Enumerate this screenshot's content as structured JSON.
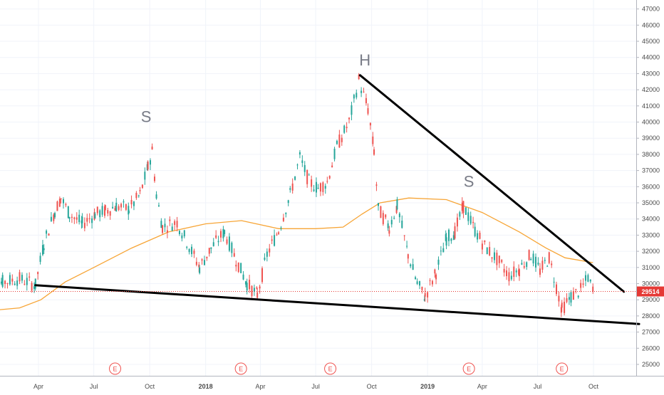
{
  "chart_data": {
    "type": "candlestick",
    "y_axis": {
      "ylim": [
        24300,
        47700
      ],
      "ticks": [
        25000,
        26000,
        27000,
        28000,
        29000,
        30000,
        31000,
        32000,
        33000,
        34000,
        35000,
        36000,
        37000,
        38000,
        39000,
        40000,
        41000,
        42000,
        43000,
        44000,
        45000,
        46000,
        47000
      ],
      "tick_labels": [
        "25000",
        "26000",
        "27000",
        "28000",
        "29000",
        "30000",
        "31000",
        "32000",
        "33000",
        "34000",
        "35000",
        "36000",
        "37000",
        "38000",
        "39000",
        "40000",
        "41000",
        "42000",
        "43000",
        "44000",
        "45000",
        "46000",
        "47000"
      ]
    },
    "x_axis": {
      "ticks": [
        "2017-04",
        "2017-07",
        "2017-10",
        "2018-01",
        "2018-04",
        "2018-07",
        "2018-10",
        "2019-01",
        "2019-04",
        "2019-07",
        "2019-10"
      ],
      "tick_labels": [
        "Apr",
        "Jul",
        "Oct",
        "2018",
        "Apr",
        "Jul",
        "Oct",
        "2019",
        "Apr",
        "Jul",
        "Oct"
      ]
    },
    "price_path": [
      [
        "2017-01-02",
        29800
      ],
      [
        "2017-02-01",
        30100
      ],
      [
        "2017-03-01",
        30300
      ],
      [
        "2017-03-27",
        29900
      ],
      [
        "2017-04-10",
        32500
      ],
      [
        "2017-04-28",
        34500
      ],
      [
        "2017-05-08",
        35300
      ],
      [
        "2017-05-22",
        34300
      ],
      [
        "2017-06-12",
        33700
      ],
      [
        "2017-07-03",
        34300
      ],
      [
        "2017-07-20",
        34500
      ],
      [
        "2017-08-07",
        34800
      ],
      [
        "2017-08-28",
        34600
      ],
      [
        "2017-09-15",
        35500
      ],
      [
        "2017-09-28",
        37200
      ],
      [
        "2017-10-05",
        38200
      ],
      [
        "2017-10-12",
        35500
      ],
      [
        "2017-10-22",
        33500
      ],
      [
        "2017-11-15",
        33800
      ],
      [
        "2017-12-05",
        32300
      ],
      [
        "2017-12-22",
        31000
      ],
      [
        "2018-01-10",
        32200
      ],
      [
        "2018-02-01",
        33200
      ],
      [
        "2018-02-20",
        31500
      ],
      [
        "2018-03-10",
        30000
      ],
      [
        "2018-03-27",
        29300
      ],
      [
        "2018-04-12",
        31800
      ],
      [
        "2018-05-01",
        33300
      ],
      [
        "2018-05-20",
        35500
      ],
      [
        "2018-06-05",
        37800
      ],
      [
        "2018-06-20",
        36300
      ],
      [
        "2018-07-05",
        35900
      ],
      [
        "2018-07-20",
        36300
      ],
      [
        "2018-08-05",
        38500
      ],
      [
        "2018-08-25",
        40000
      ],
      [
        "2018-09-10",
        42600
      ],
      [
        "2018-09-25",
        40800
      ],
      [
        "2018-10-05",
        38200
      ],
      [
        "2018-10-12",
        34600
      ],
      [
        "2018-10-30",
        33500
      ],
      [
        "2018-11-12",
        34800
      ],
      [
        "2018-11-30",
        31800
      ],
      [
        "2018-12-15",
        30000
      ],
      [
        "2018-12-28",
        29200
      ],
      [
        "2019-01-15",
        30700
      ],
      [
        "2019-02-01",
        32800
      ],
      [
        "2019-02-15",
        33200
      ],
      [
        "2019-03-01",
        34800
      ],
      [
        "2019-03-20",
        33300
      ],
      [
        "2019-04-05",
        32300
      ],
      [
        "2019-04-25",
        31500
      ],
      [
        "2019-05-15",
        30500
      ],
      [
        "2019-06-01",
        30900
      ],
      [
        "2019-06-20",
        31800
      ],
      [
        "2019-07-05",
        30800
      ],
      [
        "2019-07-20",
        31600
      ],
      [
        "2019-08-01",
        29800
      ],
      [
        "2019-08-10",
        28400
      ],
      [
        "2019-08-25",
        29200
      ],
      [
        "2019-09-10",
        29600
      ],
      [
        "2019-09-22",
        30400
      ],
      [
        "2019-09-30",
        29514
      ]
    ],
    "moving_average": {
      "color": "#f7a536",
      "points": [
        [
          "2017-01-02",
          28300
        ],
        [
          "2017-03-01",
          28500
        ],
        [
          "2017-04-05",
          29000
        ],
        [
          "2017-05-15",
          30100
        ],
        [
          "2017-07-01",
          31000
        ],
        [
          "2017-09-01",
          32200
        ],
        [
          "2017-11-01",
          33200
        ],
        [
          "2018-01-01",
          33700
        ],
        [
          "2018-03-01",
          33900
        ],
        [
          "2018-05-01",
          33400
        ],
        [
          "2018-07-01",
          33400
        ],
        [
          "2018-08-15",
          33500
        ],
        [
          "2018-09-15",
          34300
        ],
        [
          "2018-10-15",
          35000
        ],
        [
          "2018-12-01",
          35300
        ],
        [
          "2019-02-01",
          35200
        ],
        [
          "2019-04-01",
          34400
        ],
        [
          "2019-06-01",
          33200
        ],
        [
          "2019-07-15",
          32200
        ],
        [
          "2019-08-15",
          31600
        ],
        [
          "2019-09-30",
          31300
        ]
      ]
    },
    "trendlines": [
      {
        "name": "resistance",
        "from": [
          "2018-09-12",
          42900
        ],
        "to": [
          "2019-11-20",
          29500
        ],
        "color": "#000000"
      },
      {
        "name": "support",
        "from": [
          "2017-03-27",
          29900
        ],
        "to": [
          "2019-12-15",
          27500
        ],
        "color": "#000000"
      }
    ],
    "annotations": [
      {
        "text": "S",
        "x": "2017-09-25",
        "y": 40000
      },
      {
        "text": "H",
        "x": "2018-09-20",
        "y": 43500
      },
      {
        "text": "S",
        "x": "2019-03-10",
        "y": 36000
      }
    ],
    "earnings_markers": [
      {
        "text": "E",
        "x": "2017-08-05"
      },
      {
        "text": "E",
        "x": "2018-02-28"
      },
      {
        "text": "E",
        "x": "2018-07-25"
      },
      {
        "text": "E",
        "x": "2019-03-10"
      },
      {
        "text": "E",
        "x": "2019-08-10"
      }
    ],
    "last_price": {
      "value": 29514,
      "label": "29514",
      "color": "#e53935"
    },
    "colors": {
      "up": "#26a69a",
      "down": "#ef5350",
      "grid": "#f0f3fa",
      "axis_text": "#4a4a4a"
    }
  }
}
